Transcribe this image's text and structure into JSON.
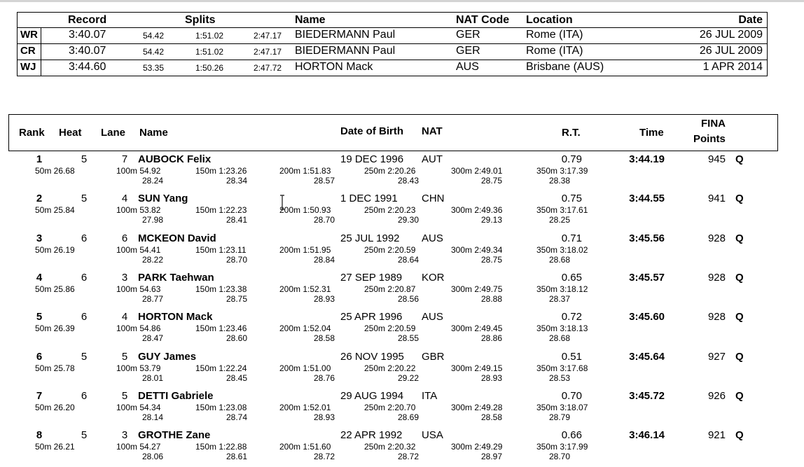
{
  "records": {
    "headers": {
      "record": "Record",
      "splits": "Splits",
      "name": "Name",
      "nat_code": "NAT Code",
      "location": "Location",
      "date": "Date"
    },
    "rows": [
      {
        "code": "WR",
        "time": "3:40.07",
        "s1": "54.42",
        "s2": "1:51.02",
        "s3": "2:47.17",
        "name": "BIEDERMANN Paul",
        "nat": "GER",
        "location": "Rome (ITA)",
        "date": "26 JUL 2009"
      },
      {
        "code": "CR",
        "time": "3:40.07",
        "s1": "54.42",
        "s2": "1:51.02",
        "s3": "2:47.17",
        "name": "BIEDERMANN Paul",
        "nat": "GER",
        "location": "Rome (ITA)",
        "date": "26 JUL 2009"
      },
      {
        "code": "WJ",
        "time": "3:44.60",
        "s1": "53.35",
        "s2": "1:50.26",
        "s3": "2:47.72",
        "name": "HORTON Mack",
        "nat": "AUS",
        "location": "Brisbane (AUS)",
        "date": "1 APR 2014"
      }
    ]
  },
  "results": {
    "headers": {
      "rank": "Rank",
      "heat": "Heat",
      "lane": "Lane",
      "name": "Name",
      "dob": "Date of Birth",
      "nat": "NAT",
      "rt": "R.T.",
      "time": "Time",
      "fina1": "FINA",
      "fina2": "Points"
    },
    "rows": [
      {
        "rank": "1",
        "heat": "5",
        "lane": "7",
        "name": "AUBOCK Felix",
        "dob": "19 DEC 1996",
        "nat": "AUT",
        "rt": "0.79",
        "time": "3:44.19",
        "points": "945",
        "q": "Q",
        "s50": "50m 26.68",
        "s100": "100m 54.92",
        "s150": "150m 1:23.26",
        "s200": "200m 1:51.83",
        "s250": "250m 2:20.26",
        "s300": "300m 2:49.01",
        "s350": "350m 3:17.39",
        "d100": "28.24",
        "d150": "28.34",
        "d200": "28.57",
        "d250": "28.43",
        "d300": "28.75",
        "d350": "28.38"
      },
      {
        "rank": "2",
        "heat": "5",
        "lane": "4",
        "name": "SUN Yang",
        "dob": "1 DEC 1991",
        "nat": "CHN",
        "rt": "0.75",
        "time": "3:44.55",
        "points": "941",
        "q": "Q",
        "s50": "50m 25.84",
        "s100": "100m 53.82",
        "s150": "150m 1:22.23",
        "s200": "200m 1:50.93",
        "s250": "250m 2:20.23",
        "s300": "300m 2:49.36",
        "s350": "350m 3:17.61",
        "d100": "27.98",
        "d150": "28.41",
        "d200": "28.70",
        "d250": "29.30",
        "d300": "29.13",
        "d350": "28.25"
      },
      {
        "rank": "3",
        "heat": "6",
        "lane": "6",
        "name": "MCKEON David",
        "dob": "25 JUL 1992",
        "nat": "AUS",
        "rt": "0.71",
        "time": "3:45.56",
        "points": "928",
        "q": "Q",
        "s50": "50m 26.19",
        "s100": "100m 54.41",
        "s150": "150m 1:23.11",
        "s200": "200m 1:51.95",
        "s250": "250m 2:20.59",
        "s300": "300m 2:49.34",
        "s350": "350m 3:18.02",
        "d100": "28.22",
        "d150": "28.70",
        "d200": "28.84",
        "d250": "28.64",
        "d300": "28.75",
        "d350": "28.68"
      },
      {
        "rank": "4",
        "heat": "6",
        "lane": "3",
        "name": "PARK Taehwan",
        "dob": "27 SEP 1989",
        "nat": "KOR",
        "rt": "0.65",
        "time": "3:45.57",
        "points": "928",
        "q": "Q",
        "s50": "50m 25.86",
        "s100": "100m 54.63",
        "s150": "150m 1:23.38",
        "s200": "200m 1:52.31",
        "s250": "250m 2:20.87",
        "s300": "300m 2:49.75",
        "s350": "350m 3:18.12",
        "d100": "28.77",
        "d150": "28.75",
        "d200": "28.93",
        "d250": "28.56",
        "d300": "28.88",
        "d350": "28.37"
      },
      {
        "rank": "5",
        "heat": "6",
        "lane": "4",
        "name": "HORTON Mack",
        "dob": "25 APR 1996",
        "nat": "AUS",
        "rt": "0.72",
        "time": "3:45.60",
        "points": "928",
        "q": "Q",
        "s50": "50m 26.39",
        "s100": "100m 54.86",
        "s150": "150m 1:23.46",
        "s200": "200m 1:52.04",
        "s250": "250m 2:20.59",
        "s300": "300m 2:49.45",
        "s350": "350m 3:18.13",
        "d100": "28.47",
        "d150": "28.60",
        "d200": "28.58",
        "d250": "28.55",
        "d300": "28.86",
        "d350": "28.68"
      },
      {
        "rank": "6",
        "heat": "5",
        "lane": "5",
        "name": "GUY James",
        "dob": "26 NOV 1995",
        "nat": "GBR",
        "rt": "0.51",
        "time": "3:45.64",
        "points": "927",
        "q": "Q",
        "s50": "50m 25.78",
        "s100": "100m 53.79",
        "s150": "150m 1:22.24",
        "s200": "200m 1:51.00",
        "s250": "250m 2:20.22",
        "s300": "300m 2:49.15",
        "s350": "350m 3:17.68",
        "d100": "28.01",
        "d150": "28.45",
        "d200": "28.76",
        "d250": "29.22",
        "d300": "28.93",
        "d350": "28.53"
      },
      {
        "rank": "7",
        "heat": "6",
        "lane": "5",
        "name": "DETTI Gabriele",
        "dob": "29 AUG 1994",
        "nat": "ITA",
        "rt": "0.70",
        "time": "3:45.72",
        "points": "926",
        "q": "Q",
        "s50": "50m 26.20",
        "s100": "100m 54.34",
        "s150": "150m 1:23.08",
        "s200": "200m 1:52.01",
        "s250": "250m 2:20.70",
        "s300": "300m 2:49.28",
        "s350": "350m 3:18.07",
        "d100": "28.14",
        "d150": "28.74",
        "d200": "28.93",
        "d250": "28.69",
        "d300": "28.58",
        "d350": "28.79"
      },
      {
        "rank": "8",
        "heat": "5",
        "lane": "3",
        "name": "GROTHE Zane",
        "dob": "22 APR 1992",
        "nat": "USA",
        "rt": "0.66",
        "time": "3:46.14",
        "points": "921",
        "q": "Q",
        "s50": "50m 26.21",
        "s100": "100m 54.27",
        "s150": "150m 1:22.88",
        "s200": "200m 1:51.60",
        "s250": "250m 2:20.32",
        "s300": "300m 2:49.29",
        "s350": "350m 3:17.99",
        "d100": "28.06",
        "d150": "28.61",
        "d200": "28.72",
        "d250": "28.72",
        "d300": "28.97",
        "d350": "28.70"
      }
    ]
  }
}
